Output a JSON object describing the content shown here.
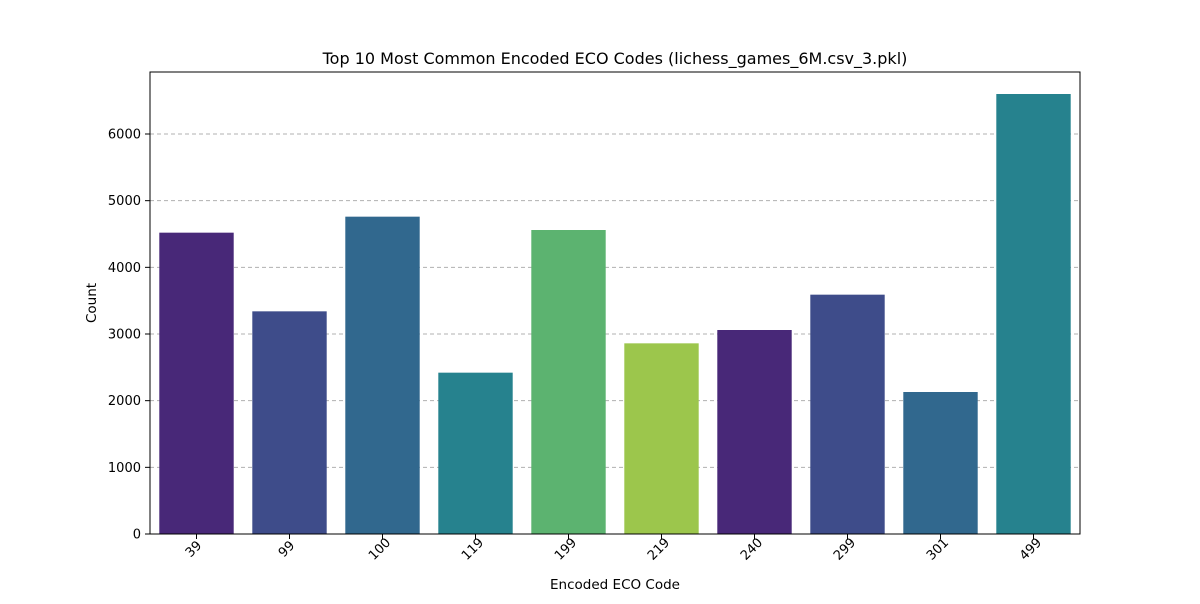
{
  "chart_data": {
    "type": "bar",
    "title": "Top 10 Most Common Encoded ECO Codes (lichess_games_6M.csv_3.pkl)",
    "xlabel": "Encoded ECO Code",
    "ylabel": "Count",
    "categories": [
      "39",
      "99",
      "100",
      "119",
      "199",
      "219",
      "240",
      "299",
      "301",
      "499"
    ],
    "values": [
      4520,
      3340,
      4760,
      2420,
      4560,
      2860,
      3060,
      3590,
      2130,
      6600
    ],
    "colors": [
      "#482878",
      "#3e4c8a",
      "#31688e",
      "#26828e",
      "#5cb370",
      "#9cc64c",
      "#482878",
      "#3e4c8a",
      "#31688e",
      "#26828e"
    ],
    "ylim": [
      0,
      6930
    ],
    "yticks": [
      0,
      1000,
      2000,
      3000,
      4000,
      5000,
      6000
    ],
    "ytick_labels": [
      "0",
      "1000",
      "2000",
      "3000",
      "4000",
      "5000",
      "6000"
    ],
    "grid": "y-dashed",
    "legend": "none"
  }
}
